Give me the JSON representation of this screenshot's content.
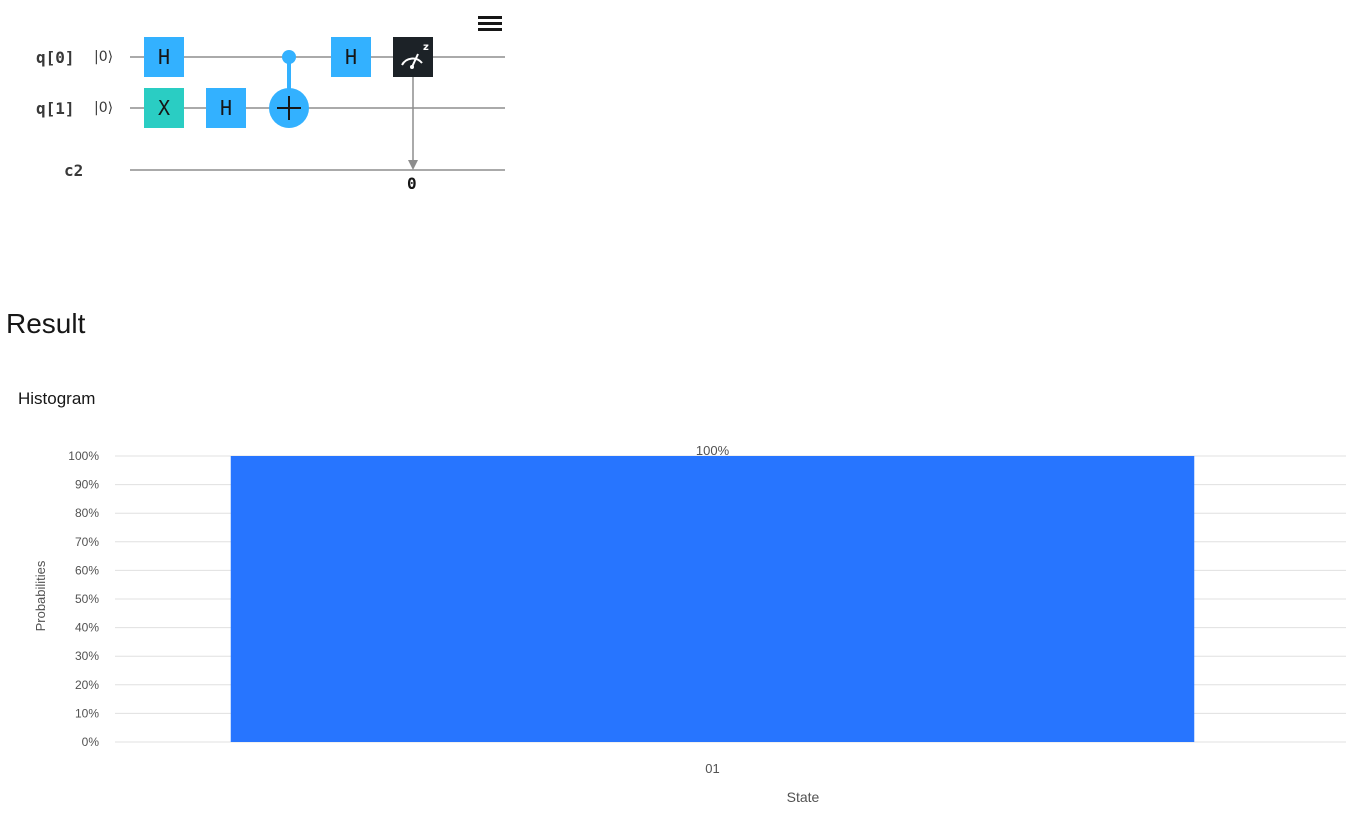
{
  "circuit": {
    "qubits": [
      {
        "label": "q[0]",
        "initial_state": "|0⟩"
      },
      {
        "label": "q[1]",
        "initial_state": "|0⟩"
      }
    ],
    "classical_register": {
      "label": "c2"
    },
    "gates": [
      {
        "type": "H",
        "label": "H",
        "qubit": 0
      },
      {
        "type": "X",
        "label": "X",
        "qubit": 1
      },
      {
        "type": "H",
        "label": "H",
        "qubit": 1
      },
      {
        "type": "CNOT",
        "control": 0,
        "target": 1
      },
      {
        "type": "H",
        "label": "H",
        "qubit": 0
      },
      {
        "type": "Measure",
        "label": "z",
        "qubit": 0,
        "bit": "0"
      }
    ],
    "colors": {
      "h_gate": "#33b1ff",
      "x_gate": "#2acdc3",
      "cnot": "#33b1ff",
      "measure": "#1c2227",
      "wire": "#8d8d8d"
    },
    "menu_icon": "hamburger-menu-icon"
  },
  "result": {
    "title": "Result",
    "histogram_title": "Histogram"
  },
  "chart_data": {
    "type": "bar",
    "categories": [
      "01"
    ],
    "values": [
      100
    ],
    "data_labels": [
      "100%"
    ],
    "xlabel": "State",
    "ylabel": "Probabilities",
    "ylim": [
      0,
      100
    ],
    "yticks": [
      "0%",
      "10%",
      "20%",
      "30%",
      "40%",
      "50%",
      "60%",
      "70%",
      "80%",
      "90%",
      "100%"
    ],
    "grid": true,
    "bar_color": "#2775ff"
  }
}
